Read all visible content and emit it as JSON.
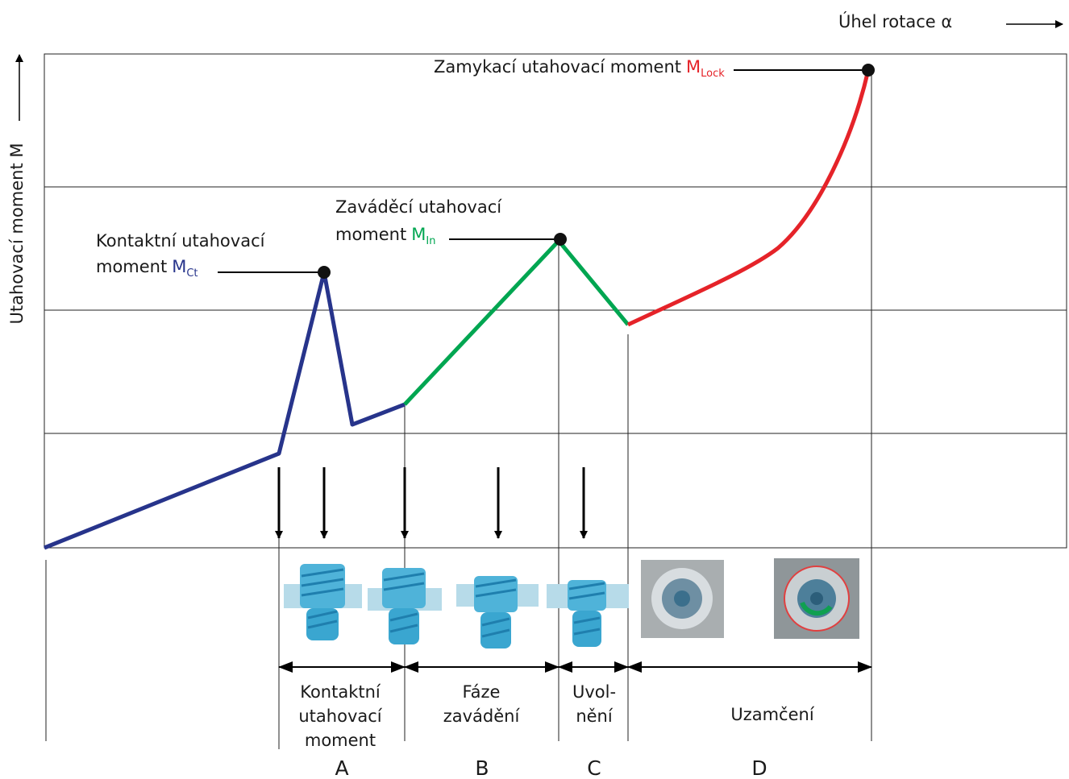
{
  "axes": {
    "x_label": "Úhel rotace α",
    "y_label": "Utahovací moment M"
  },
  "annotations": {
    "lock": {
      "line1": "Zamykací utahovací moment",
      "symbol": "M",
      "subscript": "Lock"
    },
    "insertion": {
      "line1": "Zaváděcí utahovací",
      "line2": "moment",
      "symbol": "M",
      "subscript": "In"
    },
    "contact": {
      "line1": "Kontaktní utahovací",
      "line2": "moment",
      "symbol": "M",
      "subscript": "Ct"
    }
  },
  "phases": [
    {
      "label_lines": [
        "Kontaktní",
        "utahovací",
        "moment"
      ],
      "letter": "A"
    },
    {
      "label_lines": [
        "Fáze",
        "zavádění"
      ],
      "letter": "B"
    },
    {
      "label_lines": [
        "Uvol-",
        "nění"
      ],
      "letter": "C"
    },
    {
      "label_lines": [
        "Uzamčení"
      ],
      "letter": "D"
    }
  ]
}
